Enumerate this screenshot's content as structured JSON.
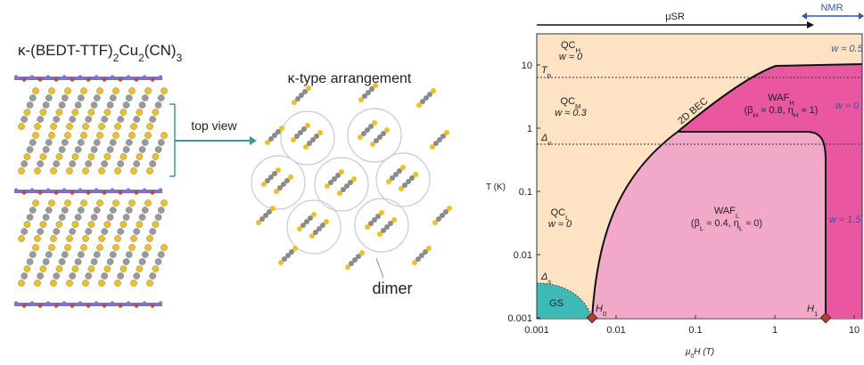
{
  "structure": {
    "formula": [
      "κ-(BEDT-TTF)",
      "2",
      "Cu",
      "2",
      "(CN)",
      "3"
    ],
    "arrow_label": "top view",
    "arrangement_title": "κ-type arrangement",
    "dimer_label": "dimer"
  },
  "phase_diagram": {
    "top_arrow_label": "μSR",
    "nmr_label": "NMR",
    "y_axis_label": "T (K)",
    "x_axis_label": [
      "μ",
      "0",
      "H (T)"
    ],
    "x_ticks": [
      "0.001",
      "0.01",
      "0.1",
      "1",
      "10"
    ],
    "y_ticks": [
      "0.001",
      "0.01",
      "0.1",
      "1",
      "10"
    ],
    "lines": {
      "tp": [
        "T",
        "p"
      ],
      "dv": [
        "Δ",
        "v"
      ],
      "ds": [
        "Δ",
        "s"
      ],
      "h0": [
        "H",
        "0"
      ],
      "h1": [
        "H",
        "1"
      ]
    },
    "regions": {
      "qch": {
        "name": [
          "QC",
          "H"
        ],
        "w": "w ≈ 0"
      },
      "qcm": {
        "name": [
          "QC",
          "M"
        ],
        "w": "w ≈ 0.3"
      },
      "qcl": {
        "name": [
          "QC",
          "L"
        ],
        "w": "w ≈ 0"
      },
      "wafh": {
        "name": [
          "WAF",
          "H"
        ],
        "params": [
          "(β",
          "H",
          " ≈ 0.8, η",
          "H",
          " ≈ 1)"
        ]
      },
      "wafl": {
        "name": [
          "WAF",
          "L"
        ],
        "params": [
          "(β",
          "L",
          " ≈ 0.4, η",
          "L",
          " ≈ 0)"
        ]
      },
      "bec": "2D BEC",
      "gs": "GS",
      "w_top_right": "w ≈ 0.5",
      "w_mid_right": "w ≈ 0",
      "w_low_right": "w ≈ 1.5"
    }
  }
}
